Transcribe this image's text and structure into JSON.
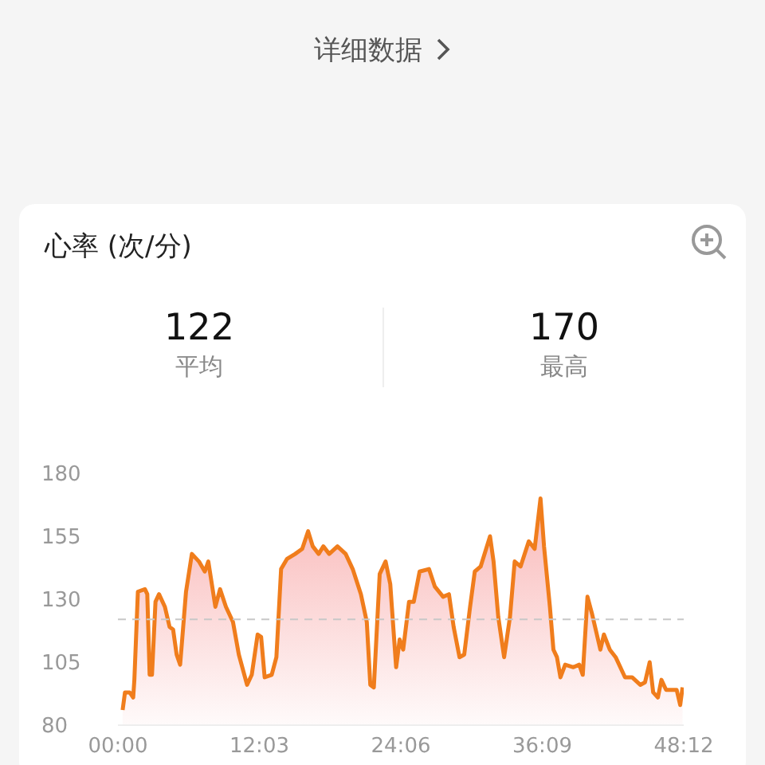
{
  "chart_data": {
    "type": "area",
    "title": "心率 (次/分)",
    "annotations": [
      "详细数据",
      "122",
      "平均",
      "170",
      "最高"
    ],
    "series": [
      {
        "color": "#f07d1c",
        "x": [
          0.4,
          0.6,
          1.0,
          1.3,
          1.4,
          1.7,
          2.3,
          2.5,
          2.7,
          2.9,
          3.2,
          3.5,
          4.0,
          4.4,
          4.7,
          5.0,
          5.3,
          5.8,
          6.3,
          6.9,
          7.4,
          7.7,
          8.3,
          8.7,
          9.2,
          9.8,
          10.3,
          11.0,
          11.4,
          11.9,
          12.2,
          12.5,
          13.1,
          13.5,
          13.9,
          14.4,
          15.1,
          15.7,
          16.2,
          16.6,
          17.1,
          17.5,
          18.0,
          18.7,
          19.4,
          20.0,
          20.7,
          21.2,
          21.5,
          21.8,
          22.3,
          22.8,
          23.2,
          23.7,
          24.0,
          24.3,
          24.8,
          25.2,
          25.7,
          26.5,
          27.0,
          27.7,
          28.2,
          28.6,
          29.1,
          29.5,
          30.0,
          30.4,
          30.9,
          31.7,
          32.0,
          32.4,
          32.9,
          33.4,
          33.8,
          34.3,
          35.0,
          35.5,
          36.0,
          36.3,
          36.8,
          37.1,
          37.4,
          37.7,
          38.1,
          38.8,
          39.3,
          39.6,
          40.0,
          40.4,
          41.1,
          41.4,
          41.9,
          42.4,
          43.2,
          43.8,
          44.5,
          44.9,
          45.3,
          45.6,
          46.0,
          46.3,
          46.7,
          47.2,
          47.6,
          47.9,
          48.1
        ],
        "values": [
          86,
          93,
          93,
          91,
          98,
          133,
          134,
          132,
          100,
          100,
          129,
          132,
          127,
          119,
          118,
          108,
          104,
          133,
          148,
          145,
          141,
          145,
          127,
          134,
          127,
          121,
          108,
          96,
          100,
          116,
          115,
          99,
          100,
          107,
          142,
          146,
          148,
          150,
          157,
          151,
          148,
          151,
          148,
          151,
          148,
          142,
          132,
          121,
          96,
          95,
          140,
          145,
          136,
          103,
          114,
          110,
          129,
          129,
          141,
          142,
          135,
          131,
          132,
          119,
          107,
          108,
          127,
          141,
          143,
          155,
          145,
          123,
          107,
          123,
          145,
          143,
          153,
          150,
          170,
          151,
          127,
          110,
          107,
          99,
          104,
          103,
          104,
          100,
          131,
          124,
          110,
          116,
          110,
          107,
          99,
          99,
          96,
          97,
          105,
          93,
          91,
          98,
          94,
          94,
          94,
          88,
          95
        ]
      }
    ],
    "xlim": [
      0,
      48.2
    ],
    "xticks": [
      {
        "value": 0,
        "label": "00:00"
      },
      {
        "value": 12.05,
        "label": "12:03"
      },
      {
        "value": 24.1,
        "label": "24:06"
      },
      {
        "value": 36.15,
        "label": "36:09"
      },
      {
        "value": 48.2,
        "label": "48:12"
      }
    ],
    "ylim": [
      80,
      180
    ],
    "yticks": [
      80,
      105,
      130,
      155,
      180
    ],
    "ref_lines": [
      {
        "axis": "y",
        "value": 122,
        "color": "#c8c8c8",
        "line_style": "dashed"
      }
    ],
    "marker": "none"
  }
}
